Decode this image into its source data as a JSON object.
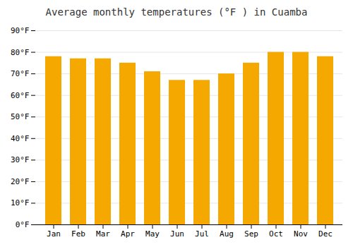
{
  "chart_data": {
    "type": "bar",
    "title": "Average monthly temperatures (°F ) in Cuamba",
    "categories": [
      "Jan",
      "Feb",
      "Mar",
      "Apr",
      "May",
      "Jun",
      "Jul",
      "Aug",
      "Sep",
      "Oct",
      "Nov",
      "Dec"
    ],
    "values": [
      78,
      77,
      77,
      75,
      71,
      67,
      67,
      70,
      75,
      80,
      80,
      78
    ],
    "color": "#F5A800",
    "ylim": [
      0,
      90
    ],
    "yticks": [
      {
        "value": 0,
        "label": "0°F"
      },
      {
        "value": 10,
        "label": "10°F"
      },
      {
        "value": 20,
        "label": "20°F"
      },
      {
        "value": 30,
        "label": "30°F"
      },
      {
        "value": 40,
        "label": "40°F"
      },
      {
        "value": 50,
        "label": "50°F"
      },
      {
        "value": 60,
        "label": "60°F"
      },
      {
        "value": 70,
        "label": "70°F"
      },
      {
        "value": 80,
        "label": "80°F"
      },
      {
        "value": 90,
        "label": "90°F"
      }
    ],
    "grid": true
  }
}
